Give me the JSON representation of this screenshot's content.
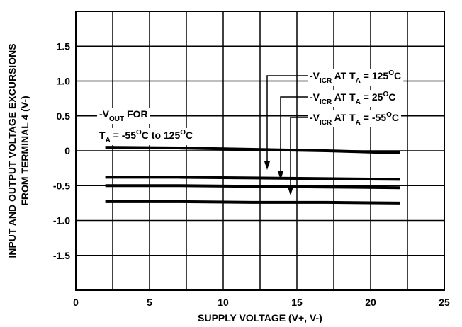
{
  "chart_data": {
    "type": "line",
    "xlabel": "SUPPLY VOLTAGE (V+, V-)",
    "ylabel": [
      "INPUT AND OUTPUT VOLTAGE EXCURSIONS",
      "FROM TERMINAL 4 (V-)"
    ],
    "x": [
      2,
      7,
      12,
      17,
      22
    ],
    "series": [
      {
        "color": "#000000",
        "values": [
          0.05,
          0.04,
          0.02,
          0.0,
          -0.03
        ]
      },
      {
        "color": "#000000",
        "values": [
          -0.38,
          -0.38,
          -0.39,
          -0.4,
          -0.41
        ]
      },
      {
        "color": "#000000",
        "values": [
          -0.5,
          -0.5,
          -0.51,
          -0.52,
          -0.53
        ]
      },
      {
        "color": "#000000",
        "values": [
          -0.73,
          -0.73,
          -0.74,
          -0.74,
          -0.75
        ]
      }
    ],
    "xlim": [
      0,
      25
    ],
    "xticks": [
      0,
      5,
      10,
      15,
      20,
      25
    ],
    "x_minor_ticks": [
      2.5,
      7.5,
      12.5,
      17.5,
      22.5
    ],
    "ylim": [
      -2,
      2
    ],
    "yticks": [
      1.5,
      {
        "value": 1,
        "label": "1.0"
      },
      0.5,
      0,
      -0.5,
      {
        "value": -1,
        "label": "-1.0"
      },
      -1.5
    ],
    "grid": true,
    "annotations": [
      {
        "lines": [
          [
            {
              "text": "-V"
            },
            {
              "text": "OUT",
              "shift": "sub"
            },
            {
              "text": " FOR"
            }
          ],
          [
            {
              "text": "T"
            },
            {
              "text": "A",
              "shift": "sub"
            },
            {
              "text": " = -55"
            },
            {
              "text": "O",
              "shift": "sup"
            },
            {
              "text": "C to 125"
            },
            {
              "text": "O",
              "shift": "sup"
            },
            {
              "text": "C"
            }
          ]
        ]
      },
      {
        "lines": [
          [
            {
              "text": "-V"
            },
            {
              "text": "ICR",
              "shift": "sub"
            },
            {
              "text": " AT T"
            },
            {
              "text": "A",
              "shift": "sub"
            },
            {
              "text": " = 125"
            },
            {
              "text": "O",
              "shift": "sup"
            },
            {
              "text": "C"
            }
          ]
        ]
      },
      {
        "lines": [
          [
            {
              "text": "-V"
            },
            {
              "text": "ICR",
              "shift": "sub"
            },
            {
              "text": " AT T"
            },
            {
              "text": "A",
              "shift": "sub"
            },
            {
              "text": " = 25"
            },
            {
              "text": "O",
              "shift": "sup"
            },
            {
              "text": "C"
            }
          ]
        ]
      },
      {
        "lines": [
          [
            {
              "text": "-V"
            },
            {
              "text": "ICR",
              "shift": "sub"
            },
            {
              "text": " AT T"
            },
            {
              "text": "A",
              "shift": "sub"
            },
            {
              "text": " = -55"
            },
            {
              "text": "O",
              "shift": "sup"
            },
            {
              "text": "C"
            }
          ]
        ]
      }
    ]
  }
}
